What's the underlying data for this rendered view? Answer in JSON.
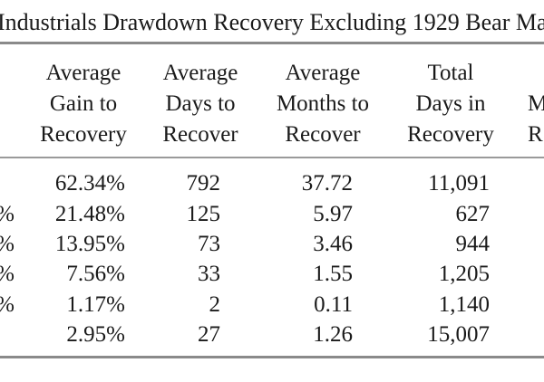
{
  "table": {
    "title": "Industrials Drawdown Recovery Excluding 1929 Bear Ma",
    "headers": [
      {
        "lines": [
          "Average",
          "Gain to",
          "Recovery"
        ]
      },
      {
        "lines": [
          "Average",
          "Days to",
          "Recover"
        ]
      },
      {
        "lines": [
          "Average",
          "Months to",
          "Recover"
        ]
      },
      {
        "lines": [
          "Total",
          "Days in",
          "Recovery"
        ]
      },
      {
        "lines": [
          "M",
          "R"
        ]
      }
    ],
    "rows": [
      {
        "prefix": "",
        "gain": "62.34%",
        "days": "792",
        "months": "37.72",
        "total": "11,091"
      },
      {
        "prefix": "%",
        "gain": "21.48%",
        "days": "125",
        "months": "5.97",
        "total": "627"
      },
      {
        "prefix": "%",
        "gain": "13.95%",
        "days": "73",
        "months": "3.46",
        "total": "944"
      },
      {
        "prefix": "%",
        "gain": "7.56%",
        "days": "33",
        "months": "1.55",
        "total": "1,205"
      },
      {
        "prefix": "%",
        "gain": "1.17%",
        "days": "2",
        "months": "0.11",
        "total": "1,140"
      },
      {
        "prefix": "",
        "gain": "2.95%",
        "days": "27",
        "months": "1.26",
        "total": "15,007"
      }
    ]
  }
}
